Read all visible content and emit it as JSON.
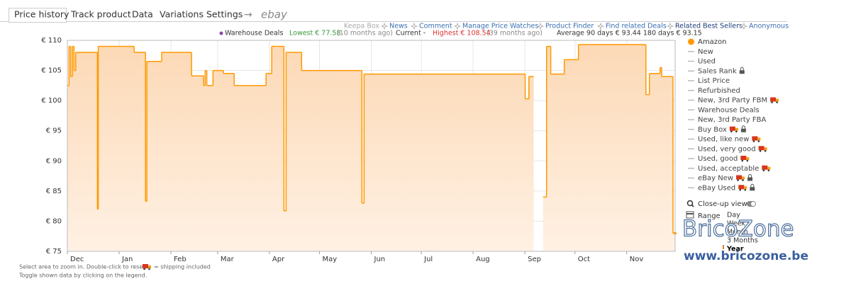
{
  "tabs": [
    "Price history",
    "Track product",
    "Data",
    "Variations",
    "Settings",
    "→",
    "ebay"
  ],
  "links": [
    "Keepa Box",
    "News",
    "Comment",
    "Manage Price Watches",
    "Product Finder",
    "Find related Deals",
    "Related Best Sellers",
    "Anonymous"
  ],
  "stats": {
    "warehouse": "Warehouse Deals",
    "lowest": "Lowest € 77.58",
    "lowest_when": "(10 months ago)",
    "current": "Current -",
    "highest": "Highest € 108.54",
    "highest_when": "(39 months ago)",
    "average": "Average 90 days € 93.44 180 days € 93.15"
  },
  "chart_data": {
    "type": "line",
    "step": true,
    "fill": true,
    "grid": true,
    "x": [
      0,
      1,
      2,
      3,
      4,
      5,
      18,
      18.5,
      40,
      46.8,
      47.6,
      56.5,
      74.4,
      81.6,
      82.5,
      83.5,
      87.2,
      93.5,
      99.9,
      119,
      122.4,
      129.7,
      131,
      140.3,
      176.4,
      177.7,
      274.2,
      276.4,
      279.3,
      283.6,
      284.9,
      287,
      289.5,
      297.6,
      306.1,
      346.5,
      348.6,
      355,
      355.9,
      362.7,
      364
    ],
    "series": [
      {
        "name": "Amazon",
        "color": "#ff9900",
        "values": [
          102.5,
          109,
          104,
          109,
          105,
          108,
          82,
          109,
          108,
          83.3,
          106.5,
          108,
          104.1,
          102.5,
          105,
          102.5,
          105,
          104.5,
          102.5,
          104.5,
          109,
          81.7,
          108,
          105,
          83,
          104.4,
          100.3,
          104,
          null,
          null,
          84,
          109,
          104.4,
          106.8,
          109.3,
          101,
          104.5,
          105.5,
          104,
          78,
          78
        ]
      }
    ],
    "xlim": [
      0,
      364
    ],
    "xticks": [
      {
        "value": 0,
        "label": "Dec"
      },
      {
        "value": 31,
        "label": "Jan"
      },
      {
        "value": 62,
        "label": "Feb"
      },
      {
        "value": 90,
        "label": "Mar"
      },
      {
        "value": 121,
        "label": "Apr"
      },
      {
        "value": 151,
        "label": "May"
      },
      {
        "value": 182,
        "label": "Jun"
      },
      {
        "value": 212,
        "label": "Jul"
      },
      {
        "value": 243,
        "label": "Aug"
      },
      {
        "value": 274,
        "label": "Sep"
      },
      {
        "value": 304,
        "label": "Oct"
      },
      {
        "value": 335,
        "label": "Nov"
      }
    ],
    "ylim": [
      75,
      110
    ],
    "yticks": [
      {
        "value": 75,
        "label": "€ 75"
      },
      {
        "value": 80,
        "label": "€ 80"
      },
      {
        "value": 85,
        "label": "€ 85"
      },
      {
        "value": 90,
        "label": "€ 90"
      },
      {
        "value": 95,
        "label": "€ 95"
      },
      {
        "value": 100,
        "label": "€ 100"
      },
      {
        "value": 105,
        "label": "€ 105"
      },
      {
        "value": 110,
        "label": "€ 110"
      }
    ]
  },
  "legend_items": [
    {
      "label": "New"
    },
    {
      "label": "Used"
    },
    {
      "label": "Sales Rank",
      "locked": true
    },
    {
      "label": "List Price"
    },
    {
      "label": "Refurbished"
    },
    {
      "label": "New, 3rd Party FBM",
      "shipping": true
    },
    {
      "label": "Warehouse Deals"
    },
    {
      "label": "New, 3rd Party FBA"
    },
    {
      "label": "Buy Box",
      "shipping": true,
      "locked": true
    },
    {
      "label": "Used, like new",
      "shipping": true
    },
    {
      "label": "Used, very good",
      "shipping": true
    },
    {
      "label": "Used, good",
      "shipping": true
    },
    {
      "label": "Used, acceptable",
      "shipping": true
    },
    {
      "label": "eBay New",
      "shipping": true,
      "locked": true
    },
    {
      "label": "eBay Used",
      "shipping": true,
      "locked": true
    }
  ],
  "controls": {
    "close_up": "Close-up view",
    "range_label": "Range",
    "range_options": [
      "Day",
      "Week",
      "Month",
      "3 Months",
      "Year"
    ],
    "range_selected": 4
  },
  "footer": [
    "Select area to zoom in. Double-click to reset.",
    "= shipping included",
    "Toggle shown data by clicking on the legend."
  ],
  "watermark": {
    "title": "BricoZone",
    "url": "www.bricozone.be"
  }
}
